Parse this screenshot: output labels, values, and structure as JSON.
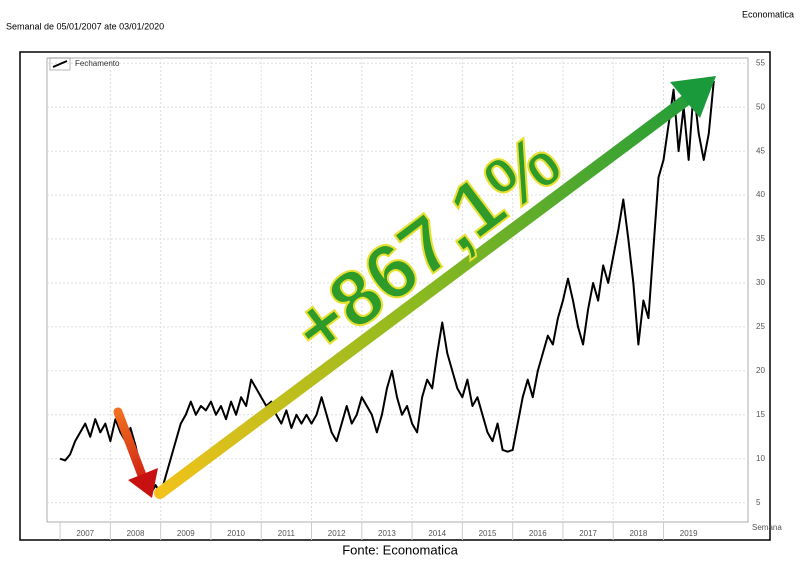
{
  "chart_data": {
    "type": "line",
    "title": "Semanal de 05/01/2007 ate 03/01/2020",
    "source_top": "Economatica",
    "source_bottom": "Fonte: Economatica",
    "annotation": "+867,1%",
    "x_label": "Semana",
    "xlim": [
      2006.74,
      2020.68
    ],
    "xticks": [
      2007,
      2008,
      2009,
      2010,
      2011,
      2012,
      2013,
      2014,
      2015,
      2016,
      2017,
      2018,
      2019
    ],
    "ylim": [
      2.8,
      55.6
    ],
    "yticks": [
      5,
      10,
      15,
      20,
      25,
      30,
      35,
      40,
      45,
      50,
      55
    ],
    "grid": true,
    "legend": "top-left",
    "x": [
      2007.0,
      2007.1,
      2007.2,
      2007.3,
      2007.4,
      2007.5,
      2007.6,
      2007.7,
      2007.8,
      2007.9,
      2008.0,
      2008.1,
      2008.2,
      2008.3,
      2008.4,
      2008.5,
      2008.6,
      2008.7,
      2008.8,
      2008.9,
      2009.0,
      2009.1,
      2009.2,
      2009.3,
      2009.4,
      2009.5,
      2009.6,
      2009.7,
      2009.8,
      2009.9,
      2010.0,
      2010.1,
      2010.2,
      2010.3,
      2010.4,
      2010.5,
      2010.6,
      2010.7,
      2010.8,
      2010.9,
      2011.0,
      2011.1,
      2011.2,
      2011.3,
      2011.4,
      2011.5,
      2011.6,
      2011.7,
      2011.8,
      2011.9,
      2012.0,
      2012.1,
      2012.2,
      2012.3,
      2012.4,
      2012.5,
      2012.6,
      2012.7,
      2012.8,
      2012.9,
      2013.0,
      2013.1,
      2013.2,
      2013.3,
      2013.4,
      2013.5,
      2013.6,
      2013.7,
      2013.8,
      2013.9,
      2014.0,
      2014.1,
      2014.2,
      2014.3,
      2014.4,
      2014.5,
      2014.6,
      2014.7,
      2014.8,
      2014.9,
      2015.0,
      2015.1,
      2015.2,
      2015.3,
      2015.4,
      2015.5,
      2015.6,
      2015.7,
      2015.8,
      2015.9,
      2016.0,
      2016.1,
      2016.2,
      2016.3,
      2016.4,
      2016.5,
      2016.6,
      2016.7,
      2016.8,
      2016.9,
      2017.0,
      2017.1,
      2017.2,
      2017.3,
      2017.4,
      2017.5,
      2017.6,
      2017.7,
      2017.8,
      2017.9,
      2018.0,
      2018.1,
      2018.2,
      2018.3,
      2018.4,
      2018.5,
      2018.6,
      2018.7,
      2018.8,
      2018.9,
      2019.0,
      2019.1,
      2019.2,
      2019.3,
      2019.4,
      2019.5,
      2019.6,
      2019.7,
      2019.8,
      2019.9,
      2020.0
    ],
    "series": [
      {
        "name": "Fechamento",
        "color": "#000000",
        "values": [
          10,
          9.8,
          10.5,
          12,
          13,
          14,
          12.5,
          14.5,
          13,
          14,
          12,
          14.5,
          13,
          12,
          13.5,
          11.5,
          9,
          7,
          6,
          7,
          6,
          8,
          10,
          12,
          14,
          15,
          16.5,
          15,
          16,
          15.5,
          16.5,
          15,
          16,
          14.5,
          16.5,
          15,
          17,
          16,
          19,
          18,
          17,
          16,
          16.5,
          15,
          14,
          15.5,
          13.5,
          15,
          14,
          15,
          14,
          15,
          17,
          15,
          13,
          12,
          14,
          16,
          14,
          15,
          17,
          16,
          15,
          13,
          15,
          18,
          20,
          17,
          15,
          16,
          14,
          13,
          17,
          19,
          18,
          22,
          25.5,
          22,
          20,
          18,
          17,
          19,
          16,
          17,
          15,
          13,
          12,
          14,
          11,
          10.8,
          11,
          14,
          17,
          19,
          17,
          20,
          22,
          24,
          23,
          26,
          28,
          30.5,
          28,
          25,
          23,
          27,
          30,
          28,
          32,
          30,
          33,
          36,
          39.5,
          35,
          30,
          23,
          28,
          26,
          34,
          42,
          44,
          48,
          52,
          45,
          50,
          44,
          52,
          47,
          44,
          47,
          53
        ]
      }
    ]
  }
}
